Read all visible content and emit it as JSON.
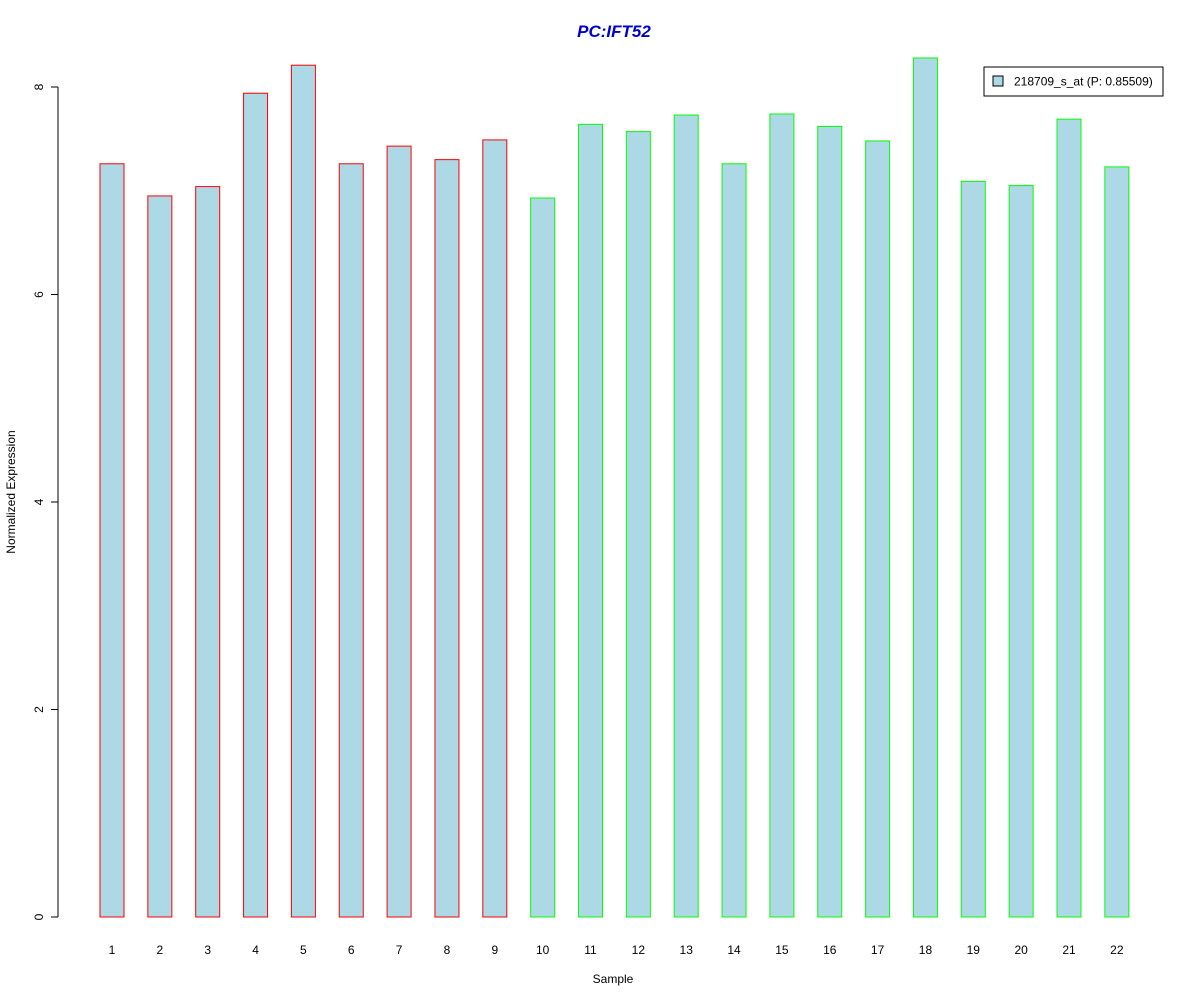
{
  "colors": {
    "title": "#0000cc",
    "bar_fill": "#add8e6",
    "group_a_border": "#ff0000",
    "group_b_border": "#00ff00",
    "axis": "#000000",
    "legend_border": "#000000",
    "background": "#ffffff"
  },
  "chart_data": {
    "type": "bar",
    "title": "PC:IFT52",
    "xlabel": "Sample",
    "ylabel": "Normalized Expression",
    "ylim": [
      0,
      8
    ],
    "yticks": [
      0,
      2,
      4,
      6,
      8
    ],
    "grid": false,
    "legend_position": "top-right",
    "categories": [
      "1",
      "2",
      "3",
      "4",
      "5",
      "6",
      "7",
      "8",
      "9",
      "10",
      "11",
      "12",
      "13",
      "14",
      "15",
      "16",
      "17",
      "18",
      "19",
      "20",
      "21",
      "22"
    ],
    "values": [
      7.26,
      6.95,
      7.04,
      7.94,
      8.21,
      7.26,
      7.43,
      7.3,
      7.49,
      6.93,
      7.64,
      7.57,
      7.73,
      7.26,
      7.74,
      7.62,
      7.48,
      8.28,
      7.09,
      7.05,
      7.69,
      7.23
    ],
    "border_groups": [
      "a",
      "a",
      "a",
      "a",
      "a",
      "a",
      "a",
      "a",
      "a",
      "b",
      "b",
      "b",
      "b",
      "b",
      "b",
      "b",
      "b",
      "b",
      "b",
      "b",
      "b",
      "b"
    ],
    "series": [
      {
        "name": "218709_s_at (P: 0.85509)",
        "values": [
          7.26,
          6.95,
          7.04,
          7.94,
          8.21,
          7.26,
          7.43,
          7.3,
          7.49,
          6.93,
          7.64,
          7.57,
          7.73,
          7.26,
          7.74,
          7.62,
          7.48,
          8.28,
          7.09,
          7.05,
          7.69,
          7.23
        ]
      }
    ],
    "legend": [
      "218709_s_at (P: 0.85509)"
    ]
  }
}
